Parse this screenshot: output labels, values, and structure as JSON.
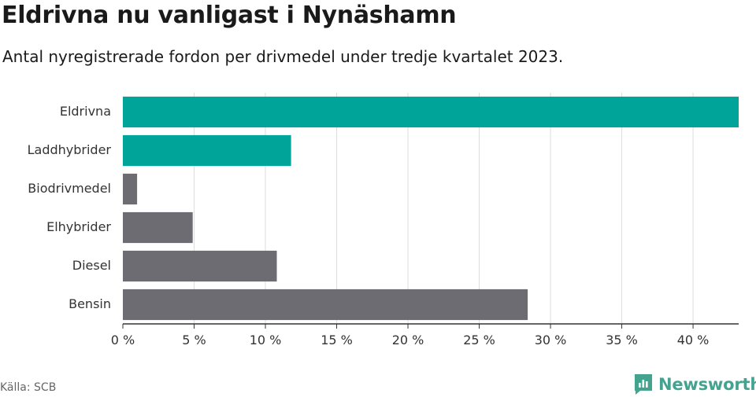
{
  "header": {
    "title": "Eldrivna nu vanligast i Nynäshamn",
    "subtitle": "Antal nyregistrerade fordon per drivmedel under tredje kvartalet 2023."
  },
  "footer": {
    "source": "Källa: SCB",
    "brand": "Newsworthy"
  },
  "colors": {
    "highlight": "#00a499",
    "default": "#6d6c73",
    "grid": "#dddddd",
    "axis": "#333333",
    "brand": "#44a38f"
  },
  "chart_data": {
    "type": "bar",
    "orientation": "horizontal",
    "title": "Eldrivna nu vanligast i Nynäshamn",
    "subtitle": "Antal nyregistrerade fordon per drivmedel under tredje kvartalet 2023.",
    "xlabel": "",
    "ylabel": "",
    "categories": [
      "Eldrivna",
      "Laddhybrider",
      "Biodrivmedel",
      "Elhybrider",
      "Diesel",
      "Bensin"
    ],
    "values": [
      43.2,
      11.8,
      1.0,
      4.9,
      10.8,
      28.4
    ],
    "highlighted": [
      true,
      true,
      false,
      false,
      false,
      false
    ],
    "xlim": [
      0,
      43.2
    ],
    "ticks": [
      0,
      5,
      10,
      15,
      20,
      25,
      30,
      35,
      40
    ],
    "tick_labels": [
      "0 %",
      "5 %",
      "10 %",
      "15 %",
      "20 %",
      "25 %",
      "30 %",
      "35 %",
      "40 %"
    ],
    "grid": true
  }
}
